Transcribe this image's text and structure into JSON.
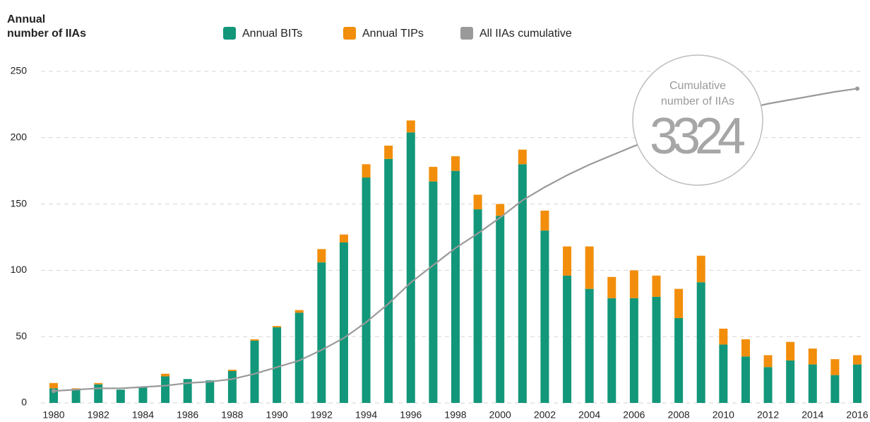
{
  "chart_data": {
    "type": "stacked_bar_line",
    "y_label_lines": [
      "Annual",
      "number of IIAs"
    ],
    "categories": [
      "1980",
      null,
      "1982",
      null,
      "1984",
      null,
      "1986",
      null,
      "1988",
      null,
      "1990",
      null,
      "1992",
      null,
      "1994",
      null,
      "1996",
      null,
      "1998",
      null,
      "2000",
      null,
      "2002",
      null,
      "2004",
      null,
      "2006",
      null,
      "2008",
      null,
      "2010",
      null,
      "2012",
      null,
      "2014",
      null,
      "2016"
    ],
    "series": [
      {
        "name": "Annual BITs",
        "type": "bar",
        "color": "#12977a",
        "values": [
          11,
          10,
          14,
          10,
          12,
          20,
          18,
          17,
          24,
          47,
          57,
          68,
          106,
          121,
          170,
          184,
          204,
          167,
          175,
          146,
          141,
          180,
          130,
          96,
          86,
          79,
          79,
          80,
          64,
          91,
          44,
          35,
          27,
          32,
          29,
          21,
          29
        ]
      },
      {
        "name": "Annual TIPs",
        "type": "bar",
        "color": "#f28e0b",
        "values": [
          4,
          1,
          1,
          0,
          0,
          2,
          0,
          0,
          1,
          1,
          1,
          2,
          10,
          6,
          10,
          10,
          9,
          11,
          11,
          11,
          9,
          11,
          15,
          22,
          32,
          16,
          21,
          16,
          22,
          20,
          12,
          13,
          9,
          14,
          12,
          12,
          7
        ]
      },
      {
        "name": "All IIAs cumulative",
        "type": "line",
        "axis": "y2",
        "color": "#9a9a9a",
        "values": [
          126,
          140,
          154,
          154,
          168,
          182,
          210,
          224,
          252,
          308,
          378,
          448,
          560,
          686,
          854,
          1050,
          1274,
          1456,
          1638,
          1792,
          1960,
          2142,
          2282,
          2408,
          2520,
          2618,
          2716,
          2800,
          2884,
          2968,
          3052,
          3108,
          3164,
          3206,
          3248,
          3290,
          3324
        ]
      }
    ],
    "ylim": [
      0,
      250
    ],
    "yticks": [
      0,
      50,
      100,
      150,
      200,
      250
    ],
    "y2lim": [
      0,
      3506
    ],
    "grid": true,
    "legend": "top",
    "annotation": {
      "lines": [
        "Cumulative",
        "number of IIAs"
      ],
      "value": 3324
    }
  }
}
